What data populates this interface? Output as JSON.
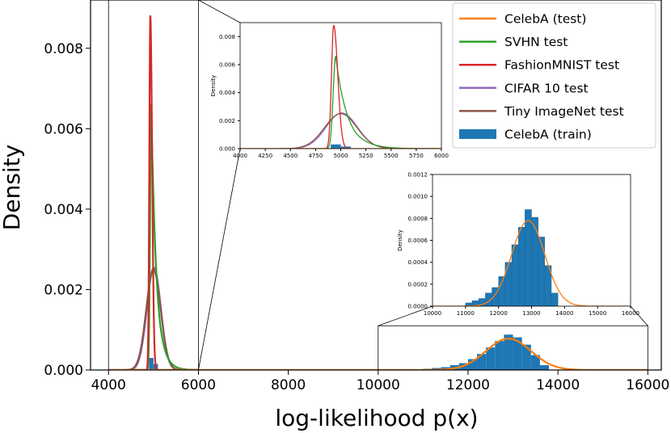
{
  "chart_data": {
    "type": "line",
    "xlabel": "log-likelihood p(x)",
    "ylabel": "Density",
    "xlim": [
      3600,
      16300
    ],
    "ylim": [
      0,
      0.0092
    ],
    "xticks": [
      4000,
      6000,
      8000,
      10000,
      12000,
      14000,
      16000
    ],
    "yticks": [
      0.0,
      0.002,
      0.004,
      0.006,
      0.008
    ],
    "xtick_labels": [
      "4000",
      "6000",
      "8000",
      "10000",
      "12000",
      "14000",
      "16000"
    ],
    "ytick_labels": [
      "0.000",
      "0.002",
      "0.004",
      "0.006",
      "0.008"
    ],
    "legend_position": "top-right",
    "series": [
      {
        "name": "CelebA (test)",
        "color": "#ff7f0e",
        "kind": "line",
        "shape": "gaussian",
        "mean": 12900,
        "sd": 500,
        "peak": 0.00078
      },
      {
        "name": "SVHN test",
        "color": "#2ca02c",
        "kind": "line",
        "shape": "skewed",
        "mean": 4950,
        "peak": 0.0066
      },
      {
        "name": "FashionMNIST test",
        "color": "#d62728",
        "kind": "line",
        "shape": "sharp",
        "mean": 4930,
        "peak": 0.0088
      },
      {
        "name": "CIFAR 10 test",
        "color": "#9467bd",
        "kind": "line",
        "shape": "gaussian",
        "mean": 5010,
        "sd": 155,
        "peak": 0.00255
      },
      {
        "name": "Tiny ImageNet test",
        "color": "#8c564b",
        "kind": "line",
        "shape": "gaussian",
        "mean": 5000,
        "sd": 160,
        "peak": 0.0025
      },
      {
        "name": "CelebA (train)",
        "color": "#1f77b4",
        "kind": "histogram"
      }
    ],
    "histogram_celeba_train": {
      "bin_width": 200,
      "bin_starts": [
        11000,
        11200,
        11400,
        11600,
        11800,
        12000,
        12200,
        12400,
        12600,
        12800,
        13000,
        13200,
        13400,
        13600
      ],
      "values": [
        3e-05,
        5e-05,
        7e-05,
        0.00012,
        0.00017,
        0.00027,
        0.0004,
        0.00056,
        0.00072,
        0.00088,
        0.00081,
        0.00063,
        0.00037,
        0.00012
      ]
    },
    "histogram_small_datasets": {
      "bin_starts": [
        4900,
        5000
      ],
      "values": [
        0.0003,
        0.00015
      ]
    },
    "insets": [
      {
        "name": "inset-low-range",
        "xlim": [
          4000,
          6000
        ],
        "ylim": [
          0,
          0.009
        ],
        "xticks": [
          "4000",
          "4250",
          "4500",
          "4750",
          "5000",
          "5250",
          "5500",
          "5750",
          "6000"
        ],
        "yticks": [
          "0.000",
          "0.002",
          "0.004",
          "0.006",
          "0.008"
        ],
        "ylabel": "Density"
      },
      {
        "name": "inset-high-range",
        "xlim": [
          10000,
          16000
        ],
        "ylim": [
          0,
          0.0012
        ],
        "xticks": [
          "10000",
          "11000",
          "12000",
          "13000",
          "14000",
          "15000",
          "16000"
        ],
        "yticks": [
          "0.0000",
          "0.0002",
          "0.0004",
          "0.0006",
          "0.0008",
          "0.0010",
          "0.0012"
        ],
        "ylabel": "Density"
      }
    ]
  }
}
